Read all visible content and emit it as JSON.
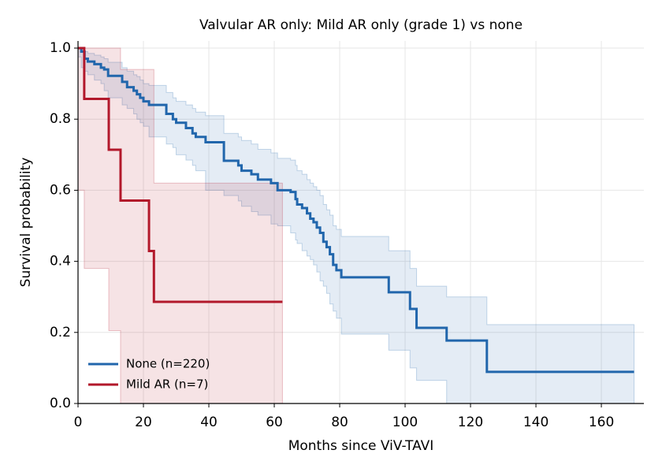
{
  "chart_data": {
    "type": "step",
    "title": "Valvular AR only: Mild AR only (grade 1) vs none",
    "x_label": "Months since ViV-TAVI",
    "y_label": "Survival probability",
    "xlim": [
      0,
      173
    ],
    "ylim": [
      0,
      1.02
    ],
    "xticks": [
      0,
      20,
      40,
      60,
      80,
      100,
      120,
      140,
      160
    ],
    "yticks": [
      {
        "value": 0,
        "label": "0.0"
      },
      {
        "value": 0.2,
        "label": "0.2"
      },
      {
        "value": 0.4,
        "label": "0.4"
      },
      {
        "value": 0.6,
        "label": "0.6"
      },
      {
        "value": 0.8,
        "label": "0.8"
      },
      {
        "value": 1,
        "label": "1.0"
      }
    ],
    "grid": true,
    "legend": "lower left",
    "series": [
      {
        "name": "None (n=220)",
        "color": "#2166ac",
        "x": [
          0,
          1,
          2,
          3,
          5,
          7,
          8,
          9.2,
          13.5,
          15,
          17,
          18,
          19,
          20,
          21.7,
          27,
          29,
          30,
          33,
          35,
          36,
          39,
          44.6,
          49,
          50,
          53,
          55,
          59,
          61,
          65,
          66.5,
          67,
          68.5,
          70,
          71,
          72,
          73,
          74,
          75,
          76,
          77,
          78,
          79,
          80.5,
          95,
          101.5,
          103.5,
          112.7,
          125,
          170
        ],
        "values": [
          1,
          0.99,
          0.97,
          0.962,
          0.955,
          0.945,
          0.94,
          0.922,
          0.905,
          0.89,
          0.88,
          0.87,
          0.86,
          0.85,
          0.84,
          0.815,
          0.8,
          0.79,
          0.775,
          0.76,
          0.75,
          0.735,
          0.683,
          0.67,
          0.655,
          0.645,
          0.63,
          0.62,
          0.6,
          0.595,
          0.575,
          0.56,
          0.55,
          0.535,
          0.52,
          0.51,
          0.495,
          0.48,
          0.455,
          0.44,
          0.42,
          0.39,
          0.375,
          0.355,
          0.313,
          0.266,
          0.213,
          0.177,
          0.089,
          0.089
        ],
        "ci_lower": [
          1,
          0.975,
          0.945,
          0.935,
          0.925,
          0.91,
          0.9,
          0.88,
          0.86,
          0.84,
          0.83,
          0.815,
          0.8,
          0.79,
          0.78,
          0.75,
          0.73,
          0.72,
          0.7,
          0.685,
          0.67,
          0.655,
          0.6,
          0.585,
          0.57,
          0.555,
          0.54,
          0.53,
          0.505,
          0.5,
          0.48,
          0.46,
          0.45,
          0.43,
          0.415,
          0.405,
          0.39,
          0.37,
          0.345,
          0.33,
          0.31,
          0.28,
          0.26,
          0.24,
          0.195,
          0.15,
          0.1,
          0.065,
          0,
          0
        ],
        "ci_upper": [
          1,
          1,
          0.99,
          0.985,
          0.98,
          0.975,
          0.97,
          0.96,
          0.945,
          0.935,
          0.925,
          0.92,
          0.91,
          0.9,
          0.895,
          0.875,
          0.86,
          0.85,
          0.84,
          0.83,
          0.82,
          0.81,
          0.76,
          0.75,
          0.74,
          0.73,
          0.715,
          0.705,
          0.69,
          0.685,
          0.67,
          0.655,
          0.645,
          0.63,
          0.62,
          0.61,
          0.6,
          0.585,
          0.56,
          0.545,
          0.53,
          0.5,
          0.49,
          0.47,
          0.43,
          0.38,
          0.33,
          0.3,
          0.222,
          0.222
        ]
      },
      {
        "name": "Mild AR (n=7)",
        "color": "#b2182b",
        "x": [
          0,
          1.9,
          9.4,
          13,
          21.7,
          23.2,
          62.5
        ],
        "values": [
          1,
          0.857,
          0.714,
          0.571,
          0.429,
          0.286,
          0.286
        ],
        "ci_lower": [
          1,
          0.6,
          0.38,
          0.205,
          0,
          0,
          0
        ],
        "ci_upper": [
          1,
          1,
          1,
          0.94,
          0.94,
          0.62,
          0.62
        ]
      }
    ]
  }
}
